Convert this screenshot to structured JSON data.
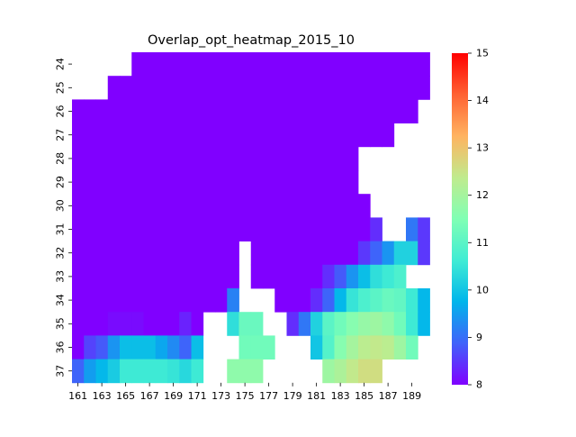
{
  "chart_data": {
    "type": "heatmap",
    "title": "Overlap_opt_heatmap_2015_10",
    "xlabel": "",
    "ylabel": "",
    "x_columns": [
      161,
      162,
      163,
      164,
      165,
      166,
      167,
      168,
      169,
      170,
      171,
      172,
      173,
      174,
      175,
      176,
      177,
      178,
      179,
      180,
      181,
      182,
      183,
      184,
      185,
      186,
      187,
      188,
      189,
      190
    ],
    "x_tick_labels": [
      "161",
      "163",
      "165",
      "167",
      "169",
      "171",
      "173",
      "175",
      "177",
      "179",
      "181",
      "183",
      "185",
      "187",
      "189"
    ],
    "y_rows": [
      24,
      25,
      26,
      27,
      28,
      29,
      30,
      31,
      32,
      33,
      34,
      35,
      36,
      37
    ],
    "y_tick_labels": [
      "24",
      "25",
      "26",
      "27",
      "28",
      "29",
      "30",
      "31",
      "32",
      "33",
      "34",
      "35",
      "36",
      "37"
    ],
    "colormap": "rainbow",
    "colorbar": {
      "min": 8,
      "max": 15,
      "tick_labels": [
        "8",
        "9",
        "10",
        "11",
        "12",
        "13",
        "14",
        "15"
      ],
      "stops": [
        "#8000ff",
        "#4062fa",
        "#00b5eb",
        "#40ecd4",
        "#80ffb4",
        "#c0eb8d",
        "#ffb360",
        "#ff6232",
        "#ff0000"
      ]
    },
    "matrix": [
      [
        null,
        null,
        null,
        null,
        null,
        8,
        8,
        8,
        8,
        8,
        8,
        8,
        8,
        8,
        8,
        8,
        8,
        8,
        8,
        8,
        8,
        8,
        8,
        8,
        8,
        8,
        8,
        8,
        8,
        8
      ],
      [
        null,
        null,
        null,
        8,
        8,
        8,
        8,
        8,
        8,
        8,
        8,
        8,
        8,
        8,
        8,
        8,
        8,
        8,
        8,
        8,
        8,
        8,
        8,
        8,
        8,
        8,
        8,
        8,
        8,
        8
      ],
      [
        8,
        8,
        8,
        8,
        8,
        8,
        8,
        8,
        8,
        8,
        8,
        8,
        8,
        8,
        8,
        8,
        8,
        8,
        8,
        8,
        8,
        8,
        8,
        8,
        8,
        8,
        8,
        8,
        8,
        null
      ],
      [
        8,
        8,
        8,
        8,
        8,
        8,
        8,
        8,
        8,
        8,
        8,
        8,
        8,
        8,
        8,
        8,
        8,
        8,
        8,
        8,
        8,
        8,
        8,
        8,
        8,
        8,
        8,
        null,
        null,
        null
      ],
      [
        8,
        8,
        8,
        8,
        8,
        8,
        8,
        8,
        8,
        8,
        8,
        8,
        8,
        8,
        8,
        8,
        8,
        8,
        8,
        8,
        8,
        8,
        8,
        8,
        null,
        null,
        null,
        null,
        null,
        null
      ],
      [
        8,
        8,
        8,
        8,
        8,
        8,
        8,
        8,
        8,
        8,
        8,
        8,
        8,
        8,
        8,
        8,
        8,
        8,
        8,
        8,
        8,
        8,
        8,
        8,
        null,
        null,
        null,
        null,
        null,
        null
      ],
      [
        8,
        8,
        8,
        8,
        8,
        8,
        8,
        8,
        8,
        8,
        8,
        8,
        8,
        8,
        8,
        8,
        8,
        8,
        8,
        8,
        8,
        8,
        8,
        8,
        8,
        null,
        null,
        null,
        null,
        null
      ],
      [
        8,
        8,
        8,
        8,
        8,
        8,
        8,
        8,
        8,
        8,
        8,
        8,
        8,
        8,
        8,
        8,
        8,
        8,
        8,
        8,
        8,
        8,
        8,
        8,
        8,
        8.4,
        null,
        null,
        9.1,
        8.5
      ],
      [
        8,
        8,
        8,
        8,
        8,
        8,
        8,
        8,
        8,
        8,
        8,
        8,
        8,
        8,
        null,
        8,
        8,
        8,
        8,
        8,
        8,
        8,
        8,
        8,
        8.5,
        8.9,
        9.4,
        10.2,
        10.2,
        8.5
      ],
      [
        8,
        8,
        8,
        8,
        8,
        8,
        8,
        8,
        8,
        8,
        8,
        8,
        8,
        8,
        null,
        8,
        8,
        8,
        8,
        8,
        8,
        8.4,
        8.8,
        9.4,
        9.9,
        10.4,
        10.6,
        10.8,
        null,
        null
      ],
      [
        8,
        8,
        8,
        8,
        8,
        8,
        8,
        8,
        8,
        8,
        8,
        8,
        8,
        9.2,
        null,
        null,
        null,
        8,
        8,
        8,
        8.4,
        8.9,
        9.8,
        10.5,
        10.8,
        11,
        11.2,
        11.1,
        10.6,
        9.8
      ],
      [
        8,
        8,
        8,
        8.1,
        8.1,
        8.1,
        8,
        8,
        8,
        8.3,
        8,
        null,
        null,
        10.4,
        11.2,
        11.2,
        null,
        null,
        8.4,
        9.1,
        10.2,
        11,
        11.3,
        11.6,
        11.8,
        11.9,
        11.7,
        11.3,
        10.6,
        9.8
      ],
      [
        8,
        8.6,
        8.8,
        9.4,
        9.9,
        9.9,
        9.9,
        9.6,
        9.3,
        8.9,
        9.9,
        null,
        null,
        null,
        11.3,
        11.3,
        11.3,
        null,
        null,
        null,
        10,
        10.9,
        11.6,
        12,
        12.3,
        12.4,
        12.3,
        11.9,
        11.3,
        null
      ],
      [
        8.9,
        9.5,
        9.8,
        10.1,
        10.6,
        10.6,
        10.6,
        10.6,
        10.5,
        10.3,
        10.6,
        null,
        null,
        11.7,
        11.7,
        11.7,
        null,
        null,
        null,
        null,
        null,
        11.9,
        12.1,
        12.4,
        12.6,
        12.6,
        null,
        null,
        null,
        null
      ]
    ]
  }
}
